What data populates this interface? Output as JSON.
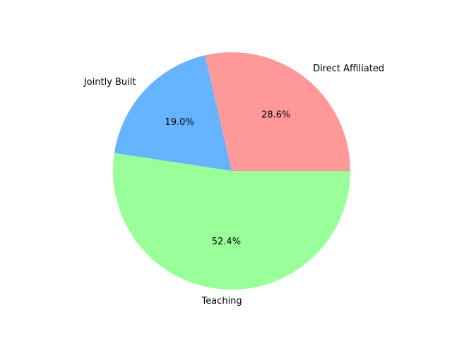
{
  "chart_data": {
    "type": "pie",
    "categories": [
      "Direct Affiliated",
      "Jointly Built",
      "Teaching"
    ],
    "values": [
      28.6,
      19.0,
      52.4
    ],
    "percent_labels": [
      "28.6%",
      "19.0%",
      "52.4%"
    ],
    "colors": [
      "#ff9999",
      "#66b3ff",
      "#99ff99"
    ],
    "start_angle_deg": 0,
    "direction": "counterclockwise",
    "legend": "none"
  }
}
